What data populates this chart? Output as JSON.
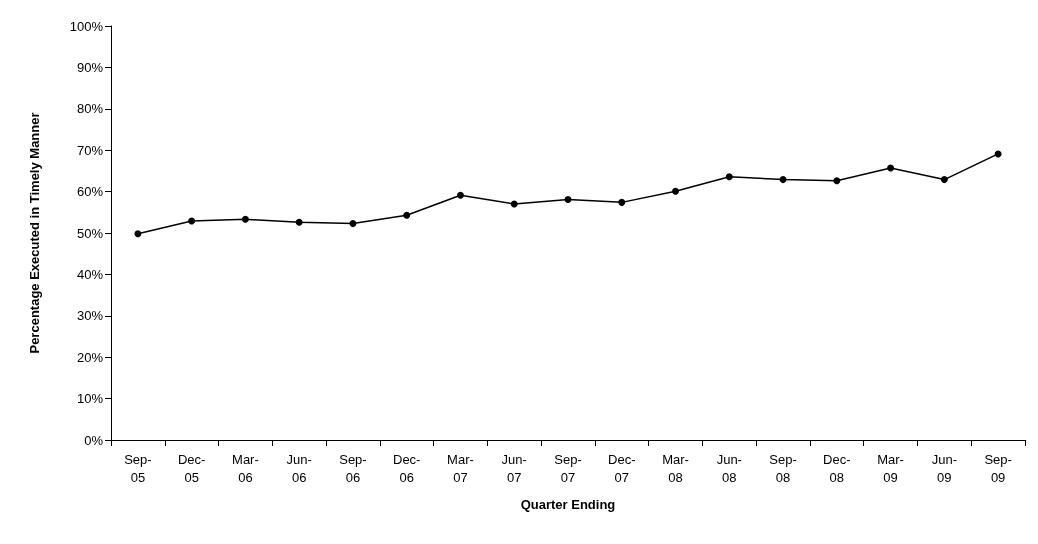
{
  "chart_data": {
    "type": "line",
    "xlabel": "Quarter Ending",
    "ylabel": "Percentage Executed in Timely Manner",
    "categories": [
      "Sep-\n05",
      "Dec-\n05",
      "Mar-\n06",
      "Jun-\n06",
      "Sep-\n06",
      "Dec-\n06",
      "Mar-\n07",
      "Jun-\n07",
      "Sep-\n07",
      "Dec-\n07",
      "Mar-\n08",
      "Jun-\n08",
      "Sep-\n08",
      "Dec-\n08",
      "Mar-\n09",
      "Jun-\n09",
      "Sep-\n09"
    ],
    "series": [
      {
        "color": "#000000",
        "values": [
          49.8,
          52.9,
          53.3,
          52.6,
          52.3,
          54.3,
          59.1,
          57.0,
          58.1,
          57.4,
          60.1,
          63.6,
          62.9,
          62.6,
          65.7,
          62.9,
          69.1
        ]
      }
    ],
    "ylim": [
      0,
      100
    ],
    "yticks": [
      {
        "value": 0,
        "label": "0%"
      },
      {
        "value": 10,
        "label": "10%"
      },
      {
        "value": 20,
        "label": "20%"
      },
      {
        "value": 30,
        "label": "30%"
      },
      {
        "value": 40,
        "label": "40%"
      },
      {
        "value": 50,
        "label": "50%"
      },
      {
        "value": 60,
        "label": "60%"
      },
      {
        "value": 70,
        "label": "70%"
      },
      {
        "value": 80,
        "label": "80%"
      },
      {
        "value": 90,
        "label": "90%"
      },
      {
        "value": 100,
        "label": "100%"
      }
    ],
    "grid": false,
    "marker": "circle",
    "line_style": "solid"
  }
}
